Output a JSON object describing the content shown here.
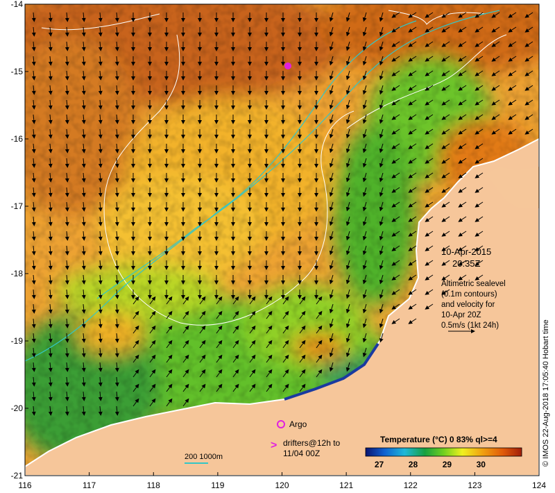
{
  "map": {
    "x_ticks": [
      "116",
      "117",
      "118",
      "119",
      "120",
      "121",
      "122",
      "123",
      "124"
    ],
    "y_ticks": [
      "-14",
      "-15",
      "-16",
      "-17",
      "-18",
      "-19",
      "-20",
      "-21"
    ],
    "x_range": [
      116,
      124
    ],
    "y_range": [
      -21,
      -14
    ]
  },
  "annotations": {
    "date": "10-Apr-2015",
    "time": "20:35Z",
    "legend_lines": [
      "Altimetric sealevel",
      "(0.1m contours)",
      "and velocity for",
      "10-Apr 20Z",
      "0.5m/s (1kt 24h)"
    ],
    "argo_label": "Argo",
    "drifters_line1": "drifters@12h to",
    "drifters_line2": "11/04 00Z",
    "bathy_label": "200  1000m",
    "side_caption": "© IMOS 22-Aug-2018 17:05:40 Hobart time"
  },
  "colorbar": {
    "title": "Temperature (°C) 0 83% ql>=4",
    "ticks": [
      "27",
      "28",
      "29",
      "30"
    ],
    "tick_values": [
      27,
      28,
      29,
      30
    ],
    "range": [
      26.6,
      31.2
    ]
  },
  "colors": {
    "land": "#f6c69a",
    "warm": "#d96a10",
    "mid": "#f0a020",
    "cool": "#3fae2e",
    "argo": "#e020e0",
    "contour": "#ffffff",
    "bathy": "#33c6c6"
  }
}
